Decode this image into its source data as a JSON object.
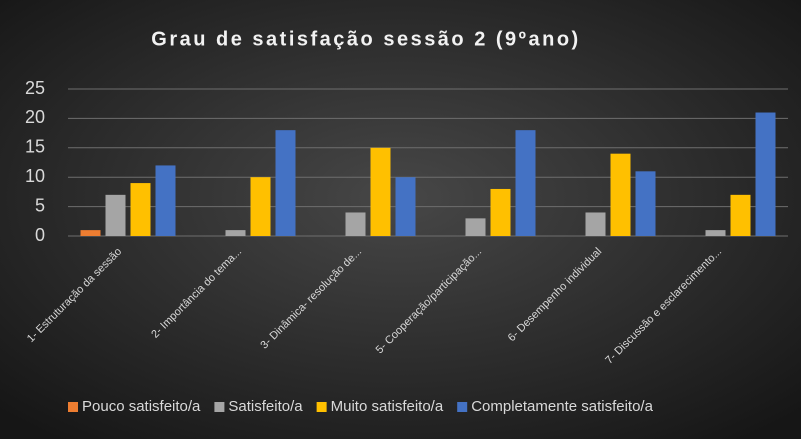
{
  "chart_data": {
    "type": "bar",
    "title": "Grau de satisfação sessão 2 (9ºano)",
    "categories": [
      "1- Estruturação da sessão",
      "2- Importância do tema...",
      "3- Dinâmica- resolução de...",
      "5- Cooperação/participação...",
      "6- Desempenho individual",
      "7- Discussão e esclarecimento..."
    ],
    "series": [
      {
        "name": "Pouco satisfeito/a",
        "color": "#ed7d31",
        "values": [
          1,
          0,
          0,
          0,
          0,
          0
        ]
      },
      {
        "name": "Satisfeito/a",
        "color": "#a5a5a5",
        "values": [
          7,
          1,
          4,
          3,
          4,
          1
        ]
      },
      {
        "name": "Muito satisfeito/a",
        "color": "#ffc000",
        "values": [
          9,
          10,
          15,
          8,
          14,
          7
        ]
      },
      {
        "name": "Completamente satisfeito/a",
        "color": "#4472c4",
        "values": [
          12,
          18,
          10,
          18,
          11,
          21
        ]
      }
    ],
    "ylim": [
      0,
      25
    ],
    "yticks": [
      0,
      5,
      10,
      15,
      20,
      25
    ],
    "grid": true,
    "legend": "bottom"
  }
}
